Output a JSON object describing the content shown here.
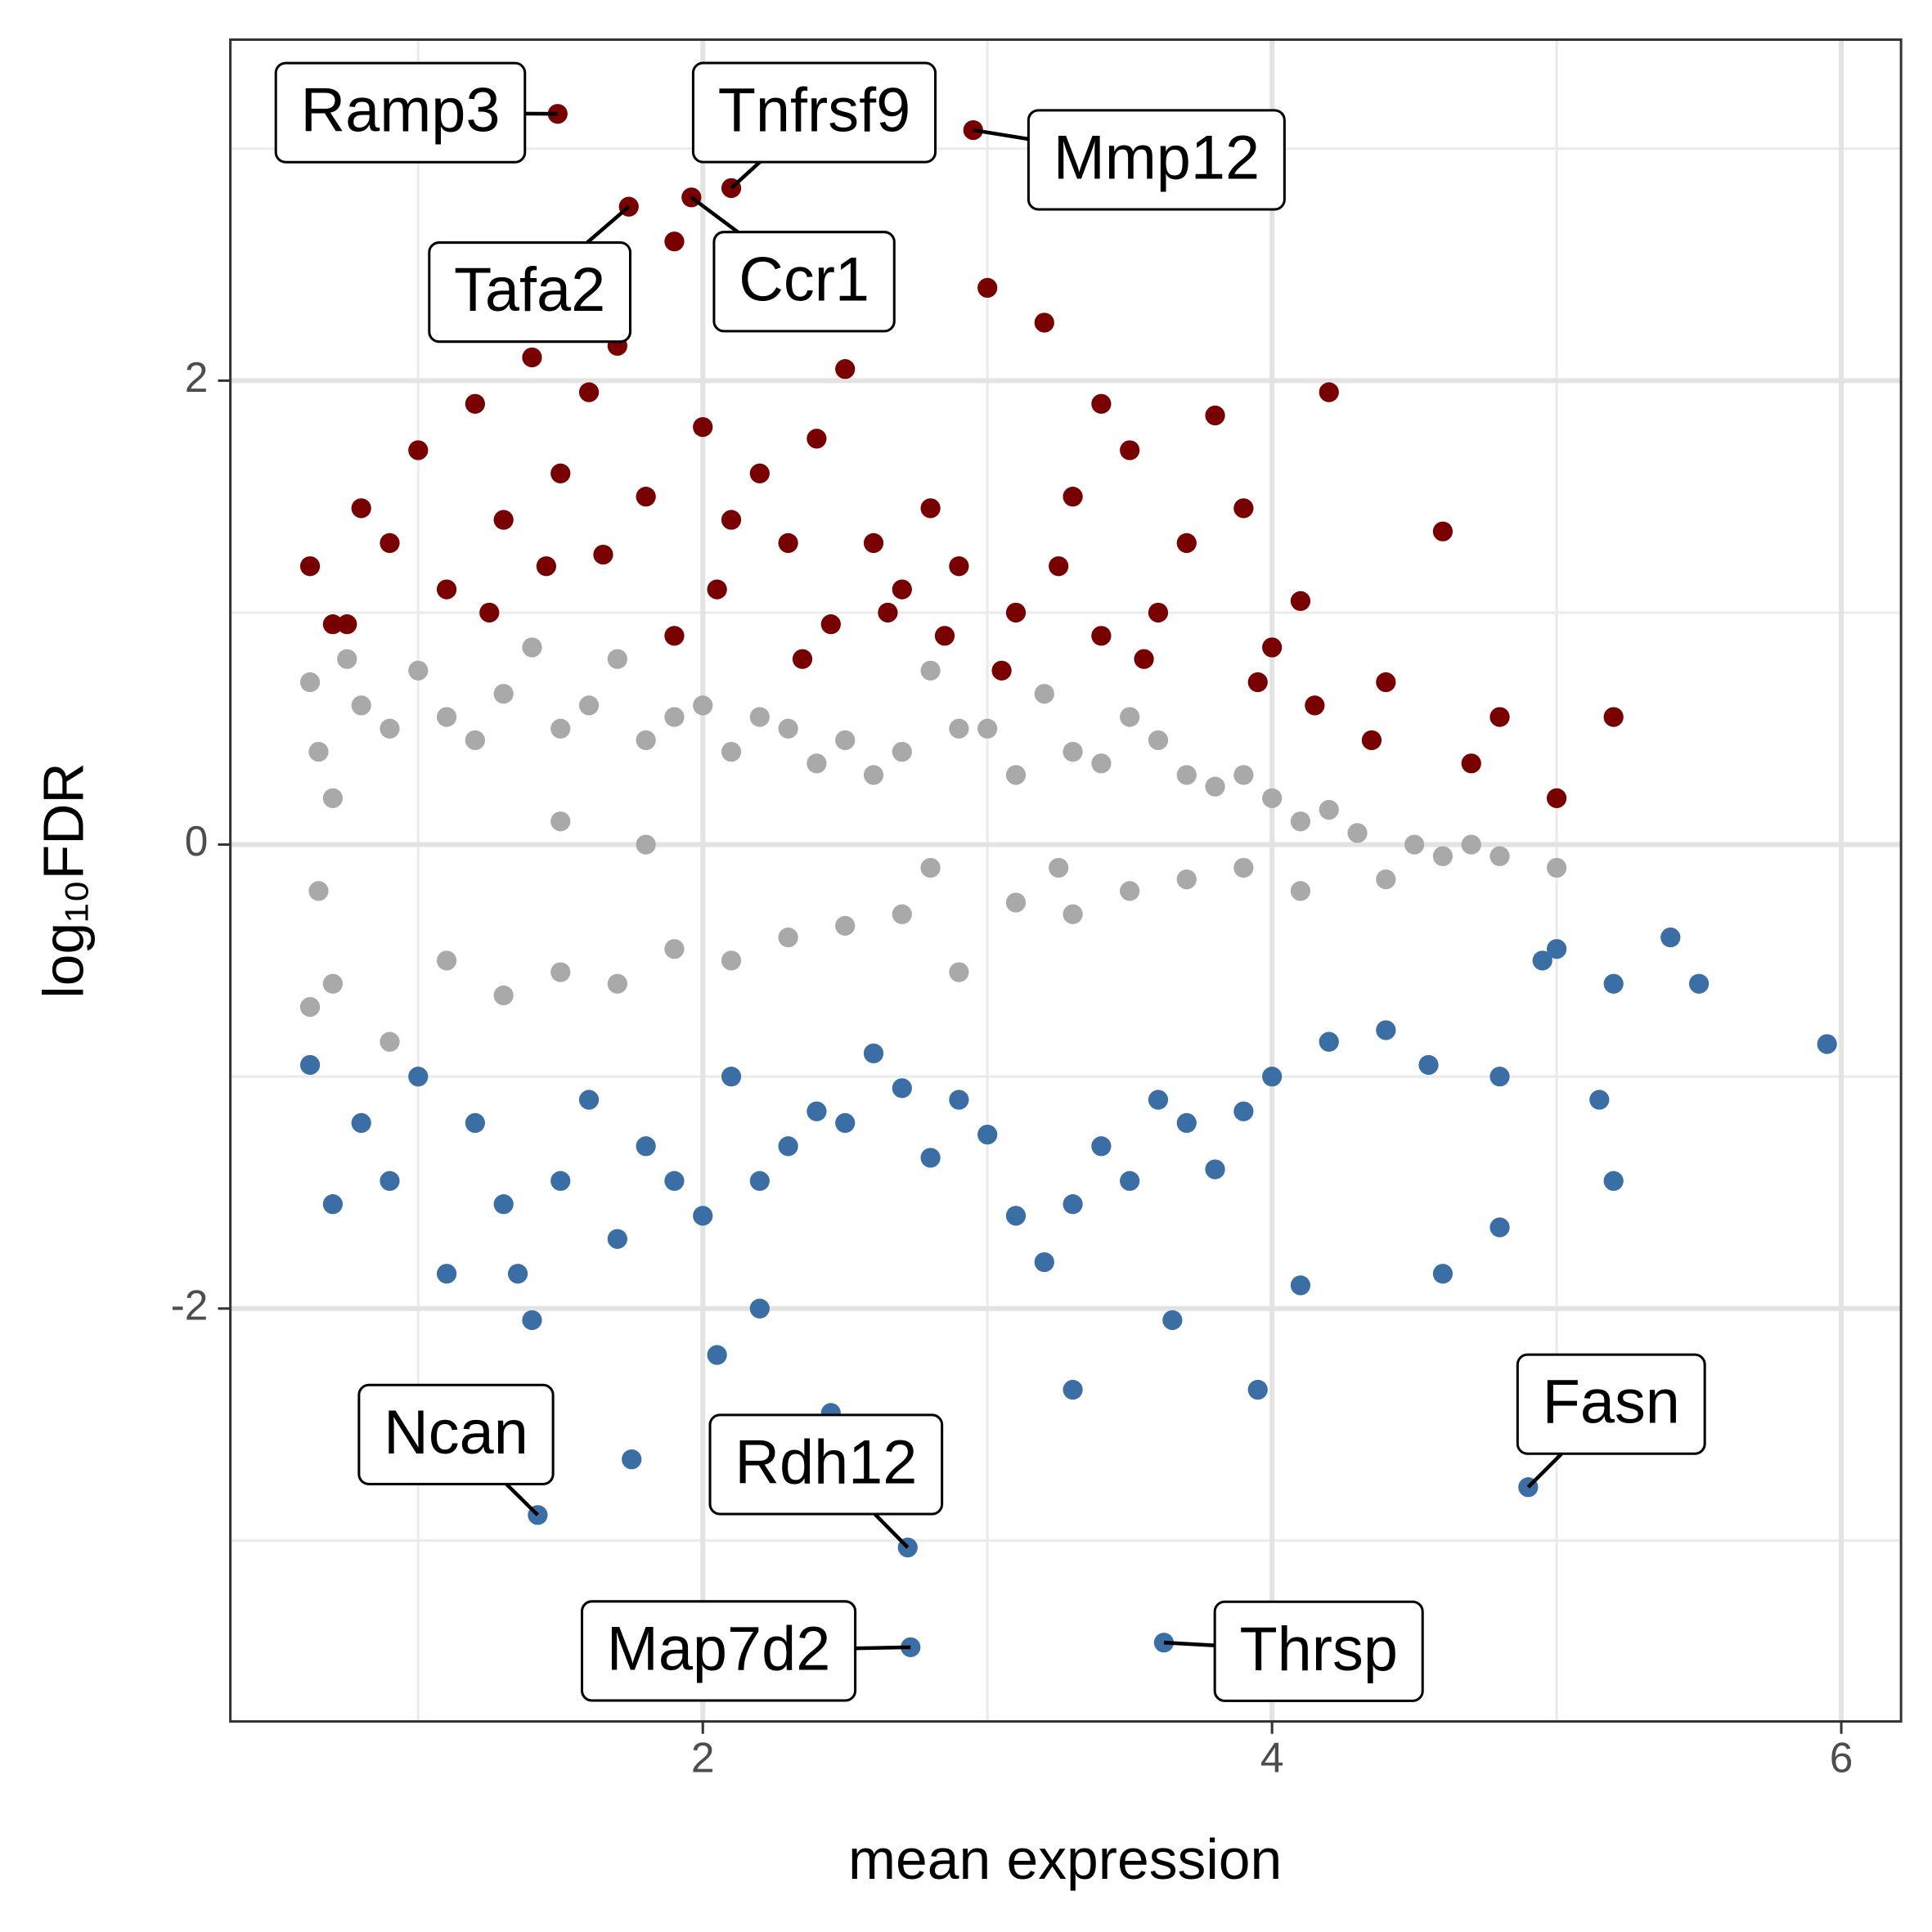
{
  "chart_data": {
    "type": "scatter",
    "xlabel": "mean expression",
    "ylabel": "log₁₀FDR",
    "xlim": [
      0.34,
      6.21
    ],
    "ylim": [
      -3.78,
      3.47
    ],
    "xticks": [
      2,
      4,
      6
    ],
    "yticks": [
      -2,
      0,
      2
    ],
    "x_minor_grid": [
      1,
      3,
      5
    ],
    "y_minor_grid": [
      -3,
      -1,
      1,
      3
    ],
    "grid": true,
    "series": [
      {
        "color": "#780000",
        "x": [
          0.62,
          0.7,
          0.8,
          0.9,
          1.0,
          1.1,
          1.2,
          1.3,
          1.4,
          1.5,
          1.6,
          1.7,
          1.8,
          1.9,
          2.0,
          2.1,
          2.2,
          2.3,
          2.4,
          2.5,
          2.6,
          2.7,
          2.8,
          2.9,
          3.0,
          3.1,
          3.2,
          3.3,
          3.4,
          3.5,
          3.6,
          3.7,
          3.8,
          3.9,
          4.0,
          4.1,
          4.2,
          4.4,
          4.6,
          4.8,
          5.0,
          5.2,
          1.45,
          1.9,
          2.35,
          2.65,
          3.25,
          3.4,
          0.75,
          4.15,
          1.25,
          1.65,
          2.05,
          2.45,
          2.85,
          3.05,
          3.55,
          3.95,
          4.35,
          4.7
        ],
        "y": [
          1.2,
          0.95,
          1.45,
          1.3,
          1.7,
          1.1,
          1.9,
          1.4,
          2.1,
          1.6,
          1.95,
          2.15,
          1.5,
          2.6,
          1.8,
          1.4,
          1.6,
          1.3,
          1.75,
          2.05,
          1.3,
          1.1,
          1.45,
          1.2,
          2.4,
          1.0,
          2.25,
          1.5,
          1.9,
          1.7,
          1.0,
          1.3,
          1.85,
          1.45,
          0.85,
          1.05,
          1.95,
          0.7,
          1.35,
          0.55,
          0.2,
          0.55,
          1.2,
          0.9,
          0.8,
          1.0,
          1.2,
          0.9,
          0.95,
          0.6,
          1.0,
          1.25,
          1.1,
          0.95,
          0.9,
          0.75,
          0.8,
          0.7,
          0.45,
          0.35
        ]
      },
      {
        "color": "#a9a9a9",
        "x": [
          0.62,
          0.65,
          0.7,
          0.75,
          0.8,
          0.9,
          1.0,
          1.1,
          1.2,
          1.3,
          1.4,
          1.5,
          1.6,
          1.7,
          1.8,
          1.9,
          2.0,
          2.1,
          2.2,
          2.3,
          2.4,
          2.5,
          2.6,
          2.7,
          2.8,
          2.9,
          3.0,
          3.1,
          3.2,
          3.3,
          3.4,
          3.5,
          3.6,
          3.7,
          3.8,
          3.9,
          4.0,
          4.1,
          4.2,
          4.3,
          4.5,
          4.7,
          4.8,
          5.0,
          0.62,
          0.7,
          0.9,
          1.1,
          1.3,
          1.5,
          1.7,
          1.9,
          2.1,
          2.3,
          2.5,
          2.7,
          2.9,
          3.1,
          3.3,
          3.5,
          3.7,
          3.9,
          4.1,
          4.4,
          4.6,
          1.8,
          2.8,
          3.25,
          1.5,
          0.65
        ],
        "y": [
          0.7,
          0.4,
          0.2,
          0.8,
          0.6,
          0.5,
          0.75,
          0.55,
          0.45,
          0.65,
          0.85,
          0.5,
          0.6,
          0.8,
          0.45,
          0.55,
          0.6,
          0.4,
          0.55,
          0.5,
          0.35,
          0.45,
          0.3,
          0.4,
          0.75,
          0.5,
          0.5,
          0.3,
          0.65,
          0.4,
          0.35,
          0.55,
          0.45,
          0.3,
          0.25,
          0.3,
          0.2,
          0.1,
          0.15,
          0.05,
          0.0,
          0.0,
          -0.05,
          -0.1,
          -0.7,
          -0.6,
          -0.85,
          -0.5,
          -0.65,
          -0.55,
          -0.6,
          -0.45,
          -0.5,
          -0.4,
          -0.35,
          -0.3,
          -0.55,
          -0.25,
          -0.3,
          -0.2,
          -0.15,
          -0.1,
          -0.2,
          -0.15,
          -0.05,
          0.0,
          -0.1,
          -0.1,
          0.1,
          -0.2
        ]
      },
      {
        "color": "#3a6ea5",
        "x": [
          0.62,
          0.7,
          0.8,
          0.9,
          1.0,
          1.1,
          1.2,
          1.3,
          1.4,
          1.5,
          1.6,
          1.7,
          1.8,
          1.9,
          2.0,
          2.1,
          2.2,
          2.3,
          2.4,
          2.5,
          2.6,
          2.7,
          2.8,
          2.9,
          3.0,
          3.1,
          3.2,
          3.3,
          3.4,
          3.5,
          3.6,
          3.7,
          3.8,
          3.9,
          4.0,
          4.1,
          4.2,
          4.4,
          4.6,
          4.8,
          5.0,
          5.2,
          5.4,
          5.5,
          5.95,
          1.75,
          2.05,
          2.45,
          3.65,
          3.95,
          4.55,
          4.95,
          5.15,
          3.3,
          2.2,
          1.35,
          4.8,
          5.2
        ],
        "y": [
          -0.95,
          -1.55,
          -1.2,
          -1.45,
          -1.0,
          -1.85,
          -1.2,
          -1.55,
          -2.05,
          -1.45,
          -1.1,
          -1.7,
          -1.3,
          -1.45,
          -1.6,
          -1.0,
          -1.45,
          -1.3,
          -1.15,
          -1.2,
          -0.9,
          -1.05,
          -1.35,
          -1.1,
          -1.25,
          -1.6,
          -1.8,
          -1.55,
          -1.3,
          -1.45,
          -1.1,
          -1.2,
          -1.4,
          -1.15,
          -1.0,
          -1.9,
          -0.85,
          -0.8,
          -1.85,
          -1.65,
          -0.45,
          -1.45,
          -0.4,
          -0.6,
          -0.86,
          -2.65,
          -2.2,
          -2.45,
          -2.05,
          -2.35,
          -0.95,
          -0.5,
          -1.1,
          -2.35,
          -2.0,
          -1.85,
          -1.0,
          -0.6
        ]
      }
    ],
    "labels": [
      {
        "label": "Ramp3",
        "x": 1.49,
        "y": 3.15
      },
      {
        "label": "Tnfrsf9",
        "x": 2.1,
        "y": 2.83
      },
      {
        "label": "Mmp12",
        "x": 2.95,
        "y": 3.08
      },
      {
        "label": "Tafa2",
        "x": 1.74,
        "y": 2.75
      },
      {
        "label": "Ccr1",
        "x": 1.96,
        "y": 2.79
      },
      {
        "label": "Ncan",
        "x": 1.42,
        "y": -2.89
      },
      {
        "label": "Rdh12",
        "x": 2.72,
        "y": -3.03
      },
      {
        "label": "Map7d2",
        "x": 2.73,
        "y": -3.46
      },
      {
        "label": "Thrsp",
        "x": 3.62,
        "y": -3.44
      },
      {
        "label": "Fasn",
        "x": 4.9,
        "y": -2.77
      }
    ]
  }
}
